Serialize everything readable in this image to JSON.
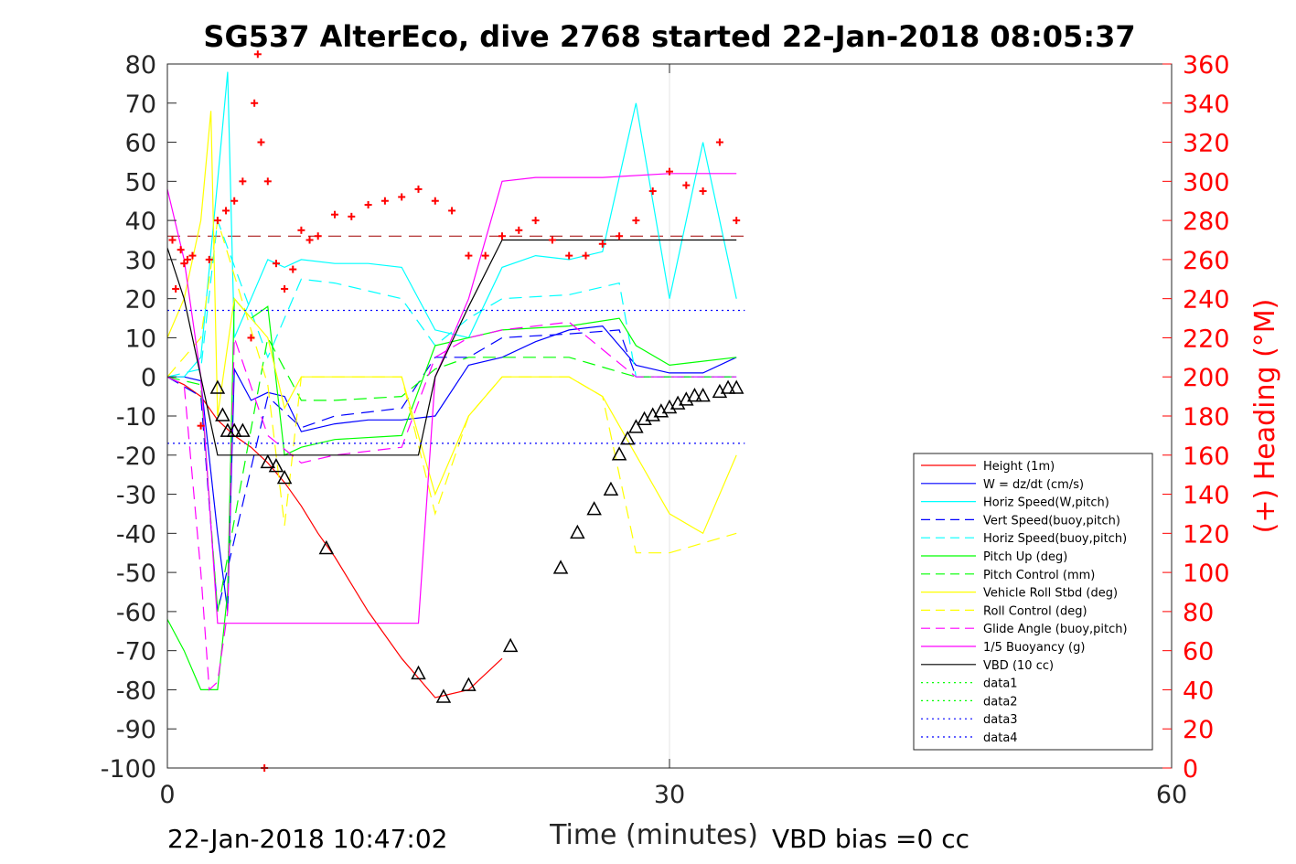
{
  "chart_data": {
    "type": "line",
    "title": "SG537 AlterEco, dive 2768 started 22-Jan-2018 08:05:37",
    "xlabel": "Time (minutes)",
    "ylabel": "",
    "ylabel_right": "(+) Heading (°M)",
    "xlim": [
      0,
      60
    ],
    "ylim": [
      -100,
      80
    ],
    "ylim_right": [
      0,
      360
    ],
    "xticks": [
      "0",
      "30",
      "60"
    ],
    "yticks": [
      "80",
      "70",
      "60",
      "50",
      "40",
      "30",
      "20",
      "10",
      "0",
      "-10",
      "-20",
      "-30",
      "-40",
      "-50",
      "-60",
      "-70",
      "-80",
      "-90",
      "-100"
    ],
    "yticks_right": [
      "360",
      "340",
      "320",
      "300",
      "280",
      "260",
      "240",
      "220",
      "200",
      "180",
      "160",
      "140",
      "120",
      "100",
      "80",
      "60",
      "40",
      "20",
      "0"
    ],
    "grid": "x-only",
    "legend_placement": "bottom-right",
    "footer_left": "22-Jan-2018 10:47:02",
    "footer_right": "VBD bias =0 cc",
    "series": [
      {
        "name": "Height (1m)",
        "color": "#ff0000",
        "style": "solid",
        "x": [
          0,
          1,
          2,
          3,
          4,
          5,
          6,
          7,
          8,
          9,
          10,
          12,
          14,
          16,
          18,
          20
        ],
        "y": [
          0,
          -2,
          -5,
          -11,
          -15,
          -18,
          -22,
          -27,
          -33,
          -40,
          -46,
          -60,
          -72,
          -82,
          -80,
          -72
        ]
      },
      {
        "name": "W = dz/dt (cm/s)",
        "color": "#0000ff",
        "style": "solid",
        "x": [
          0,
          1,
          2,
          3,
          3.6,
          4,
          5,
          6,
          7,
          8,
          10,
          12,
          14,
          16,
          18,
          20,
          22,
          24,
          26,
          28,
          30,
          32,
          34
        ],
        "y": [
          0,
          0,
          -1,
          -40,
          -60,
          2,
          -6,
          -4,
          -5,
          -14,
          -12,
          -11,
          -11,
          -10,
          3,
          5,
          9,
          12,
          13,
          3,
          1,
          1,
          5
        ]
      },
      {
        "name": "Horiz Speed(W,pitch)",
        "color": "#00ffff",
        "style": "solid",
        "x": [
          0,
          1,
          2,
          3,
          3.6,
          4,
          5,
          6,
          7,
          8,
          10,
          12,
          14,
          16,
          18,
          20,
          22,
          24,
          26,
          28,
          30,
          32,
          34
        ],
        "y": [
          0,
          0,
          5,
          50,
          78,
          10,
          20,
          30,
          28,
          30,
          29,
          29,
          28,
          12,
          10,
          28,
          31,
          30,
          32,
          70,
          20,
          60,
          20
        ]
      },
      {
        "name": "Vert Speed(buoy,pitch)",
        "color": "#0000ff",
        "style": "dashed",
        "x": [
          0,
          2,
          3,
          6,
          8,
          10,
          14,
          16,
          18,
          20,
          24,
          27,
          28,
          34
        ],
        "y": [
          0,
          -5,
          -60,
          -5,
          -13,
          -10,
          -8,
          5,
          5,
          10,
          11,
          12,
          0,
          0
        ]
      },
      {
        "name": "Horiz Speed(buoy,pitch)",
        "color": "#00ffff",
        "style": "dashed",
        "x": [
          0,
          2,
          3,
          6,
          8,
          10,
          14,
          16,
          18,
          20,
          24,
          27,
          28,
          34
        ],
        "y": [
          0,
          2,
          40,
          5,
          25,
          24,
          20,
          8,
          15,
          20,
          21,
          24,
          0,
          0
        ]
      },
      {
        "name": "Pitch Up (deg)",
        "color": "#00ff00",
        "style": "solid",
        "x": [
          0,
          1,
          2,
          3,
          3.6,
          4,
          5,
          6,
          7,
          8,
          10,
          14,
          16,
          18,
          20,
          24,
          27,
          28,
          30,
          34
        ],
        "y": [
          -62,
          -70,
          -80,
          -80,
          -55,
          20,
          15,
          18,
          -20,
          -18,
          -16,
          -15,
          8,
          10,
          12,
          13,
          15,
          8,
          3,
          5
        ]
      },
      {
        "name": "Pitch Control (mm)",
        "color": "#00ff00",
        "style": "dashed",
        "x": [
          0,
          2,
          3,
          6,
          8,
          10,
          14,
          16,
          18,
          24,
          28,
          34
        ],
        "y": [
          0,
          -2,
          -60,
          10,
          -6,
          -6,
          -5,
          2,
          5,
          5,
          0,
          0
        ]
      },
      {
        "name": "Vehicle Roll Stbd (deg)",
        "color": "#ffff00",
        "style": "solid",
        "x": [
          0,
          1,
          2,
          2.6,
          3,
          4,
          5,
          6,
          7,
          8,
          10,
          14,
          16,
          18,
          20,
          22,
          24,
          26,
          28,
          30,
          32,
          34
        ],
        "y": [
          10,
          20,
          40,
          68,
          -10,
          20,
          15,
          10,
          -8,
          0,
          0,
          0,
          -30,
          -10,
          0,
          0,
          0,
          -5,
          -20,
          -35,
          -40,
          -20
        ]
      },
      {
        "name": "Roll Control (deg)",
        "color": "#ffff00",
        "style": "dashed",
        "x": [
          0,
          2,
          3,
          6,
          7,
          8,
          10,
          14,
          16,
          18,
          20,
          24,
          26,
          28,
          30,
          34
        ],
        "y": [
          0,
          10,
          40,
          -2,
          -38,
          0,
          0,
          0,
          -35,
          -10,
          0,
          0,
          -5,
          -45,
          -45,
          -40
        ]
      },
      {
        "name": "Glide Angle (buoy,pitch)",
        "color": "#ff00ff",
        "style": "dashed",
        "x": [
          0,
          1,
          2,
          2.5,
          3,
          3.6,
          4,
          6,
          8,
          10,
          14,
          16,
          18,
          20,
          24,
          28,
          30,
          34
        ],
        "y": [
          0,
          -2,
          -50,
          -80,
          -78,
          -60,
          10,
          -15,
          -22,
          -20,
          -18,
          5,
          10,
          12,
          14,
          0,
          0,
          0
        ]
      },
      {
        "name": "1/5 Buoyancy (g)",
        "color": "#ff00ff",
        "style": "solid",
        "x": [
          0,
          1,
          2,
          3,
          5,
          10,
          14,
          15,
          16,
          18,
          20,
          22,
          26,
          30,
          34
        ],
        "y": [
          48,
          30,
          0,
          -63,
          -63,
          -63,
          -63,
          -63,
          0,
          20,
          50,
          51,
          51,
          52,
          52
        ]
      },
      {
        "name": "VBD (10 cc)",
        "color": "#000000",
        "style": "solid",
        "x": [
          0,
          1,
          2,
          3,
          6,
          8,
          14,
          15,
          16,
          18,
          20,
          22,
          26,
          30,
          34
        ],
        "y": [
          33,
          20,
          0,
          -20,
          -20,
          -20,
          -20,
          -20,
          0,
          18,
          35,
          35,
          35,
          35,
          35
        ]
      },
      {
        "name": "data1",
        "color": "#00ff00",
        "style": "dotted",
        "x": [],
        "y": []
      },
      {
        "name": "data2",
        "color": "#00ff00",
        "style": "dotted",
        "x": [],
        "y": []
      },
      {
        "name": "data3",
        "color": "#0000ff",
        "style": "dotted",
        "x": [
          0,
          34.5
        ],
        "y": [
          17,
          17
        ]
      },
      {
        "name": "data4",
        "color": "#0000ff",
        "style": "dotted",
        "x": [
          0,
          34.5
        ],
        "y": [
          -17,
          -17
        ]
      }
    ],
    "heading_reference_line": {
      "color": "#a00000",
      "style": "dashed",
      "y_right": 272,
      "x": [
        0,
        34.5
      ]
    },
    "heading_points": {
      "color": "#ff0000",
      "marker": "+",
      "x": [
        0.3,
        0.5,
        0.8,
        1.0,
        1.2,
        1.5,
        2.0,
        2.5,
        3.0,
        3.5,
        4.0,
        4.5,
        5.0,
        5.2,
        5.4,
        5.6,
        5.8,
        6.0,
        6.5,
        7.0,
        7.5,
        8.0,
        8.5,
        9.0,
        10,
        11,
        12,
        13,
        14,
        15,
        16,
        17,
        18,
        19,
        20,
        21,
        22,
        23,
        24,
        25,
        26,
        27,
        28,
        29,
        30,
        31,
        32,
        33,
        34
      ],
      "y": [
        270,
        245,
        265,
        258,
        260,
        262,
        175,
        260,
        280,
        285,
        290,
        300,
        220,
        340,
        365,
        320,
        0,
        300,
        258,
        245,
        255,
        275,
        270,
        272,
        283,
        282,
        288,
        290,
        292,
        296,
        290,
        285,
        262,
        262,
        272,
        275,
        280,
        270,
        262,
        262,
        268,
        272,
        280,
        295,
        305,
        298,
        295,
        320,
        280
      ]
    },
    "markers": {
      "color": "#000000",
      "shape": "triangle-hollow",
      "x": [
        3,
        3.3,
        3.6,
        4.0,
        4.5,
        6.0,
        6.5,
        7.0,
        9.5,
        15,
        16.5,
        18,
        20.5,
        23.5,
        24.5,
        25.5,
        26.5,
        27,
        27.5,
        28,
        28.5,
        29,
        29.5,
        30,
        30.5,
        31,
        31.5,
        32,
        33,
        33.5,
        34
      ],
      "y": [
        -3,
        -10,
        -14,
        -14,
        -14,
        -22,
        -23,
        -26,
        -44,
        -76,
        -82,
        -79,
        -69,
        -49,
        -40,
        -34,
        -29,
        -20,
        -16,
        -13,
        -11,
        -10,
        -9,
        -8,
        -7,
        -6,
        -5,
        -5,
        -4,
        -3,
        -3
      ]
    }
  }
}
